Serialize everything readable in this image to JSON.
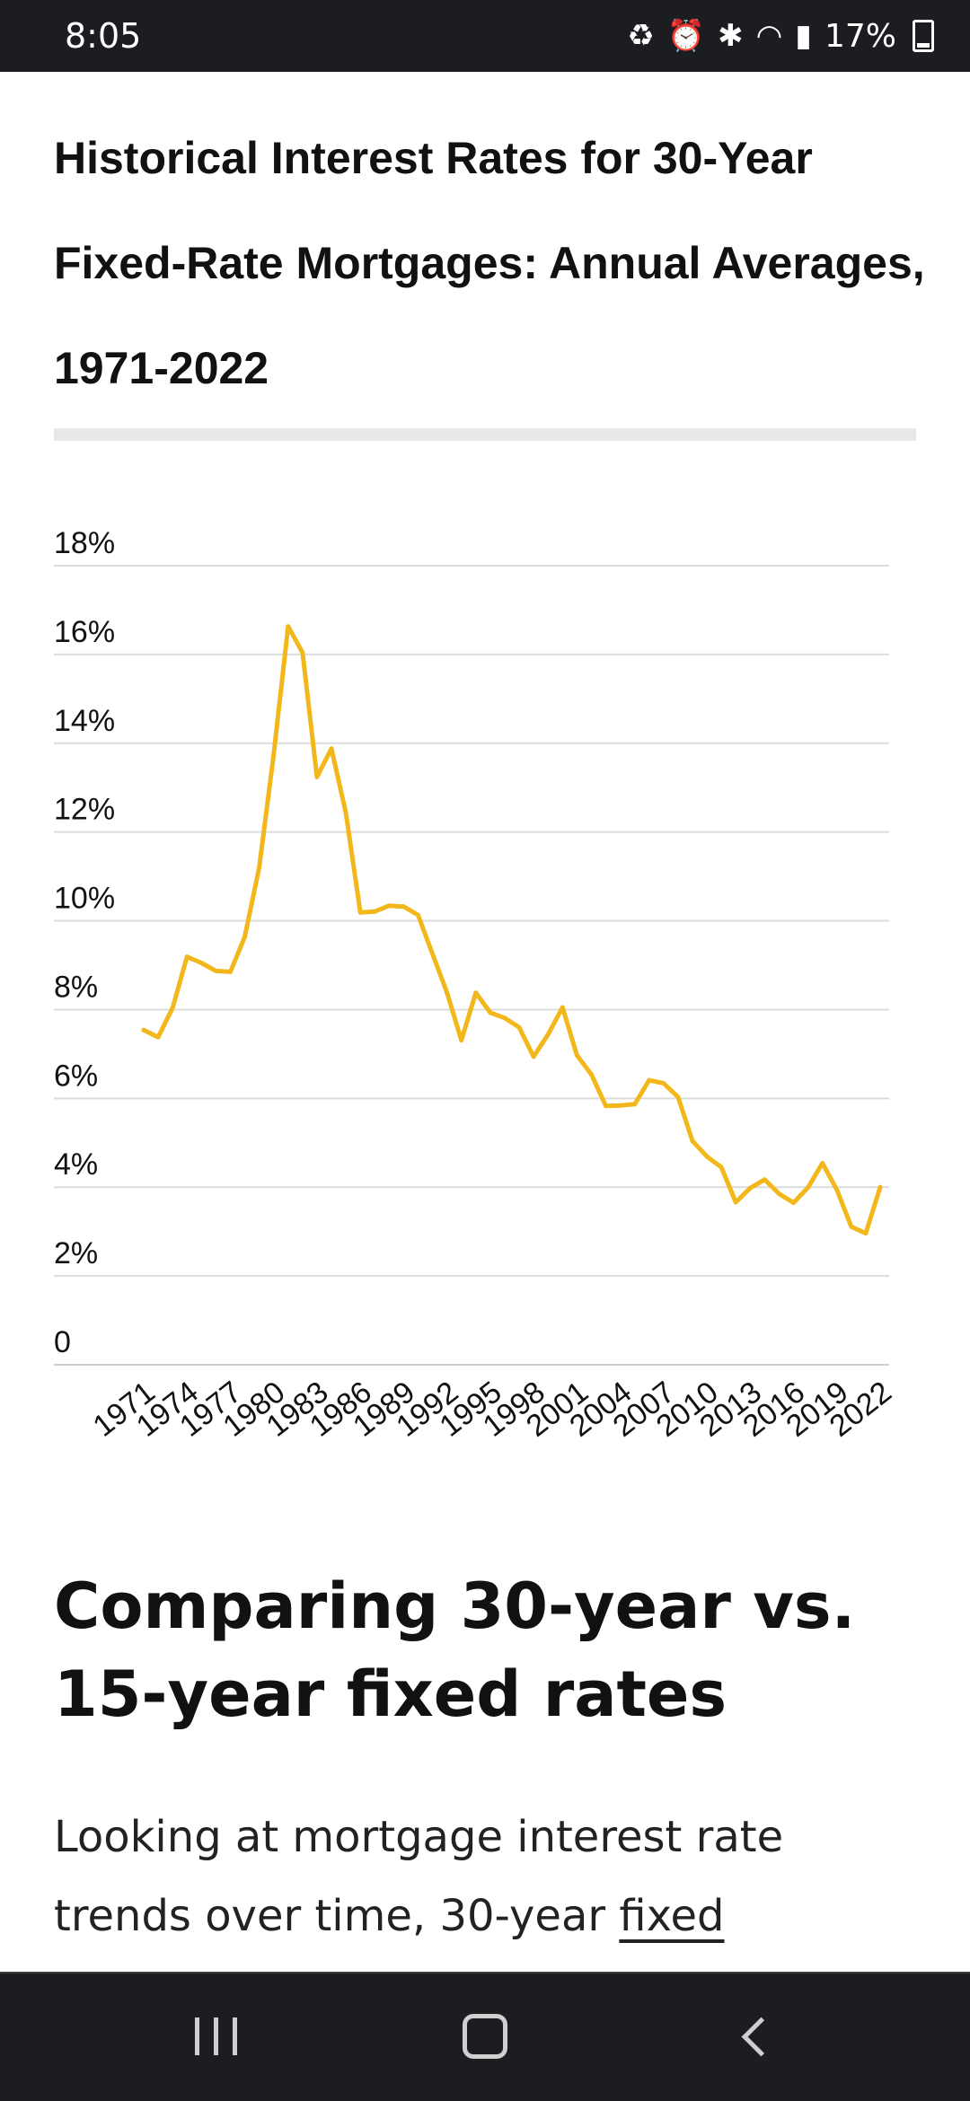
{
  "status_bar": {
    "time": "8:05",
    "battery_pct": "17%",
    "icons": [
      "recycle-icon",
      "alarm-icon",
      "bluetooth-icon",
      "wifi-icon",
      "signal-icon",
      "battery-icon"
    ]
  },
  "article": {
    "chart_title": "Historical Interest Rates for 30-Year Fixed-Rate Mortgages: Annual Averages, 1971-2022",
    "section_heading": "Comparing 30-year vs. 15-year fixed rates",
    "body_text_1": "Looking at mortgage interest rate trends over time, 30-year ",
    "body_link": "fixed"
  },
  "chart_data": {
    "type": "line",
    "title": "Historical Interest Rates for 30-Year Fixed-Rate Mortgages: Annual Averages, 1971-2022",
    "xlabel": "",
    "ylabel": "",
    "ylim": [
      0,
      18
    ],
    "y_ticks": [
      "0",
      "2%",
      "4%",
      "6%",
      "8%",
      "10%",
      "12%",
      "14%",
      "16%",
      "18%"
    ],
    "x_ticks": [
      "1971",
      "1974",
      "1977",
      "1980",
      "1983",
      "1986",
      "1989",
      "1992",
      "1995",
      "1998",
      "2001",
      "2004",
      "2007",
      "2010",
      "2013",
      "2016",
      "2019",
      "2022"
    ],
    "grid": true,
    "line_color": "#f2b71a",
    "x": [
      1971,
      1972,
      1973,
      1974,
      1975,
      1976,
      1977,
      1978,
      1979,
      1980,
      1981,
      1982,
      1983,
      1984,
      1985,
      1986,
      1987,
      1988,
      1989,
      1990,
      1991,
      1992,
      1993,
      1994,
      1995,
      1996,
      1997,
      1998,
      1999,
      2000,
      2001,
      2002,
      2003,
      2004,
      2005,
      2006,
      2007,
      2008,
      2009,
      2010,
      2011,
      2012,
      2013,
      2014,
      2015,
      2016,
      2017,
      2018,
      2019,
      2020,
      2021,
      2022
    ],
    "series": [
      {
        "values": [
          7.54,
          7.38,
          8.04,
          9.19,
          9.05,
          8.87,
          8.85,
          9.64,
          11.2,
          13.74,
          16.63,
          16.04,
          13.24,
          13.88,
          12.43,
          10.19,
          10.21,
          10.34,
          10.32,
          10.13,
          9.25,
          8.39,
          7.31,
          8.38,
          7.93,
          7.81,
          7.6,
          6.94,
          7.44,
          8.05,
          6.97,
          6.54,
          5.83,
          5.84,
          5.87,
          6.41,
          6.34,
          6.03,
          5.04,
          4.69,
          4.45,
          3.66,
          3.98,
          4.17,
          3.85,
          3.65,
          3.99,
          4.54,
          3.94,
          3.11,
          2.96,
          4.0
        ]
      }
    ]
  }
}
